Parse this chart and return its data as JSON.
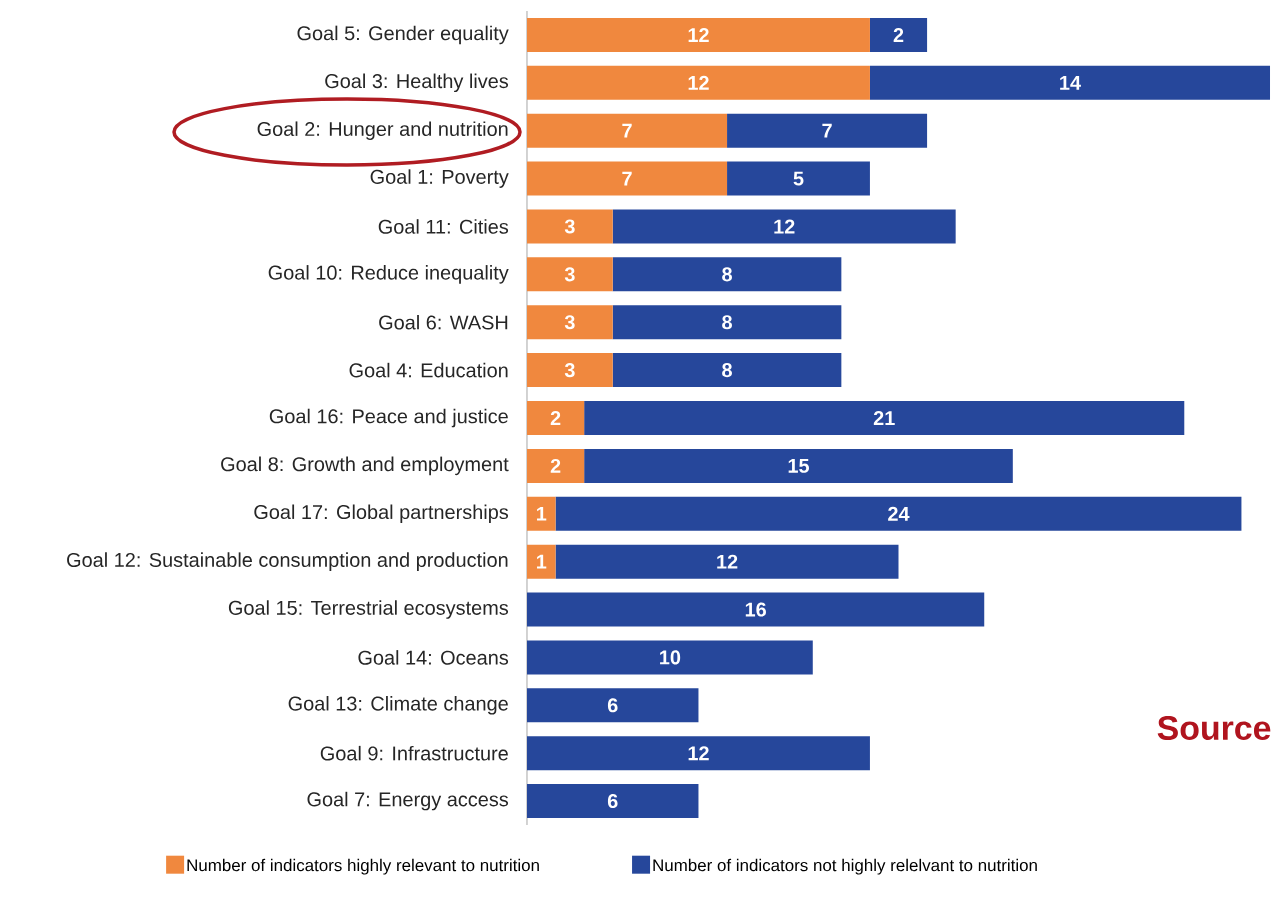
{
  "chart_data": {
    "type": "bar",
    "orientation": "horizontal",
    "stacked": true,
    "data_labels": true,
    "legend": "bottom",
    "categories": [
      "Goal 5: Gender equality",
      "Goal 3: Healthy lives",
      "Goal 2: Hunger and nutrition",
      "Goal 1: Poverty",
      "Goal 11: Cities",
      "Goal 10: Reduce inequality",
      "Goal 6: WASH",
      "Goal 4: Education",
      "Goal 16: Peace and justice",
      "Goal 8:  Growth and employment",
      "Goal 17: Global partnerships",
      "Goal 12: Sustainable consumption and production",
      "Goal 15: Terrestrial ecosystems",
      "Goal 14: Oceans",
      "Goal 13: Climate change",
      "Goal 9: Infrastructure",
      "Goal 7: Energy access"
    ],
    "series": [
      {
        "name": "Number of indicators highly relevant to nutrition",
        "color": "#f0883e",
        "values": [
          12,
          12,
          7,
          7,
          3,
          3,
          3,
          3,
          2,
          2,
          1,
          1,
          null,
          null,
          null,
          null,
          null
        ]
      },
      {
        "name": "Number of indicators not highly relelvant to nutrition",
        "color": "#26479b",
        "values": [
          2,
          14,
          7,
          5,
          12,
          8,
          8,
          8,
          21,
          15,
          24,
          12,
          16,
          10,
          6,
          12,
          6
        ]
      }
    ],
    "annotations": [
      "Source"
    ]
  }
}
